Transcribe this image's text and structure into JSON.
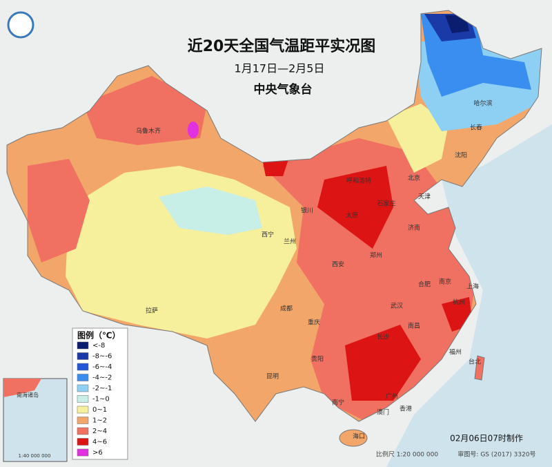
{
  "header": {
    "title": "近20天全国气温距平实况图",
    "date_range": "1月17日—2月5日",
    "agency": "中央气象台"
  },
  "legend": {
    "title": "图例（℃）",
    "items": [
      {
        "label": "<-8",
        "color": "#0b1d6e"
      },
      {
        "label": "-8~-6",
        "color": "#1a3aa8"
      },
      {
        "label": "-6~-4",
        "color": "#2456d8"
      },
      {
        "label": "-4~-2",
        "color": "#3a8ef0"
      },
      {
        "label": "-2~-1",
        "color": "#8ed0f4"
      },
      {
        "label": "-1~0",
        "color": "#c8eee8"
      },
      {
        "label": "0~1",
        "color": "#f6ef9c"
      },
      {
        "label": "1~2",
        "color": "#f2a66a"
      },
      {
        "label": "2~4",
        "color": "#f07062"
      },
      {
        "label": "4~6",
        "color": "#dc1414"
      },
      {
        "label": ">6",
        "color": "#e030e0"
      }
    ]
  },
  "cities": [
    "乌鲁木齐",
    "哈尔滨",
    "长春",
    "沈阳",
    "北京",
    "天津",
    "呼和浩特",
    "银川",
    "石家庄",
    "太原",
    "济南",
    "西宁",
    "兰州",
    "郑州",
    "西安",
    "合肥",
    "南京",
    "上海",
    "成都",
    "重庆",
    "武汉",
    "杭州",
    "拉萨",
    "长沙",
    "南昌",
    "福州",
    "台北",
    "贵阳",
    "昆明",
    "南宁",
    "广州",
    "澳门",
    "香港",
    "海口"
  ],
  "inset": {
    "title": "南海诸岛",
    "scale": "1:40 000 000"
  },
  "footer": {
    "made": "02月06日07时制作",
    "scale": "比例尺 1:20 000 000",
    "approval": "审图号: GS (2017) 3320号"
  }
}
